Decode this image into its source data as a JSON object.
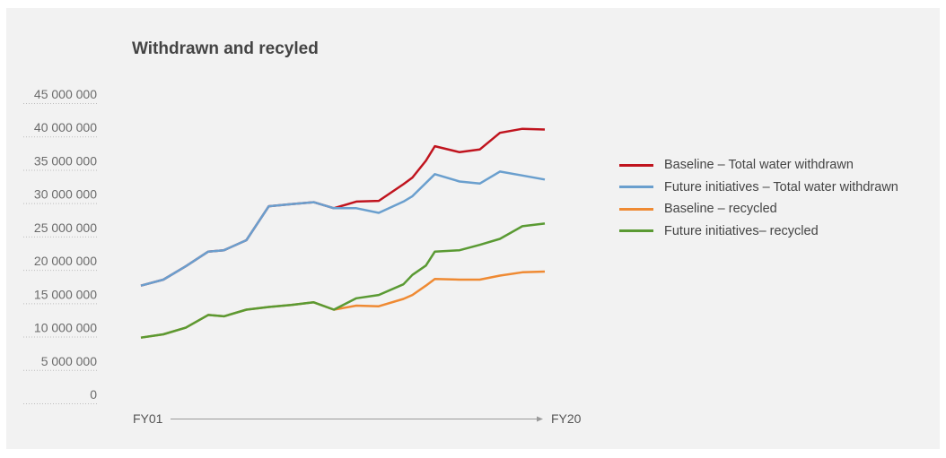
{
  "chart_data": {
    "type": "line",
    "title": "Withdrawn and recyled",
    "x_start_label": "FY01",
    "x_end_label": "FY20",
    "x": [
      1,
      2,
      3,
      4,
      5,
      6,
      7,
      8,
      9,
      10,
      11,
      12,
      13,
      14,
      15,
      16,
      17,
      18,
      19,
      20
    ],
    "yticks": [
      "45 000 000",
      "40 000 000",
      "35 000 000",
      "30 000 000",
      "25 000 000",
      "20 000 000",
      "15 000 000",
      "10 000 000",
      "5 000 000",
      "0"
    ],
    "ylim": [
      0,
      45000000
    ],
    "legend_position": "right",
    "series": [
      {
        "name": "Baseline – Total water withdrawn",
        "color": "#c0141e",
        "points": [
          [
            1,
            16300000
          ],
          [
            2,
            17200000
          ],
          [
            3,
            19200000
          ],
          [
            4,
            21400000
          ],
          [
            4.7,
            21600000
          ],
          [
            5.7,
            23100000
          ],
          [
            6.7,
            28200000
          ],
          [
            7.7,
            28500000
          ],
          [
            8.7,
            28800000
          ],
          [
            9.6,
            27900000
          ],
          [
            10.6,
            28900000
          ],
          [
            11.6,
            29000000
          ],
          [
            12.7,
            31500000
          ],
          [
            13.1,
            32500000
          ],
          [
            13.7,
            35000000
          ],
          [
            14.1,
            37200000
          ],
          [
            15.2,
            36300000
          ],
          [
            16.1,
            36700000
          ],
          [
            17,
            39200000
          ],
          [
            18,
            39800000
          ],
          [
            19,
            39700000
          ]
        ]
      },
      {
        "name": "Future initiatives – Total water withdrawn",
        "color": "#6a9fce",
        "points": [
          [
            1,
            16300000
          ],
          [
            2,
            17200000
          ],
          [
            3,
            19200000
          ],
          [
            4,
            21400000
          ],
          [
            4.7,
            21600000
          ],
          [
            5.7,
            23100000
          ],
          [
            6.7,
            28200000
          ],
          [
            7.7,
            28500000
          ],
          [
            8.7,
            28800000
          ],
          [
            9.6,
            27900000
          ],
          [
            10.6,
            27900000
          ],
          [
            11.6,
            27200000
          ],
          [
            12.7,
            28900000
          ],
          [
            13.1,
            29700000
          ],
          [
            14.1,
            33000000
          ],
          [
            15.2,
            31900000
          ],
          [
            16.1,
            31600000
          ],
          [
            17,
            33400000
          ],
          [
            18,
            32800000
          ],
          [
            19,
            32200000
          ]
        ]
      },
      {
        "name": "Baseline – recycled",
        "color": "#ef8a33",
        "points": [
          [
            1,
            8500000
          ],
          [
            2,
            9000000
          ],
          [
            3,
            10000000
          ],
          [
            4,
            11900000
          ],
          [
            4.7,
            11700000
          ],
          [
            5.7,
            12700000
          ],
          [
            6.7,
            13100000
          ],
          [
            7.7,
            13400000
          ],
          [
            8.7,
            13800000
          ],
          [
            9.6,
            12700000
          ],
          [
            10.6,
            13300000
          ],
          [
            11.6,
            13200000
          ],
          [
            12.7,
            14300000
          ],
          [
            13.1,
            14900000
          ],
          [
            13.7,
            16300000
          ],
          [
            14.1,
            17300000
          ],
          [
            15.2,
            17200000
          ],
          [
            16.1,
            17200000
          ],
          [
            17,
            17800000
          ],
          [
            18,
            18300000
          ],
          [
            19,
            18400000
          ]
        ]
      },
      {
        "name": "Future initiatives– recycled",
        "color": "#5a9a33",
        "points": [
          [
            1,
            8500000
          ],
          [
            2,
            9000000
          ],
          [
            3,
            10000000
          ],
          [
            4,
            11900000
          ],
          [
            4.7,
            11700000
          ],
          [
            5.7,
            12700000
          ],
          [
            6.7,
            13100000
          ],
          [
            7.7,
            13400000
          ],
          [
            8.7,
            13800000
          ],
          [
            9.6,
            12700000
          ],
          [
            10.6,
            14400000
          ],
          [
            11.6,
            14900000
          ],
          [
            12.7,
            16500000
          ],
          [
            13.1,
            17900000
          ],
          [
            13.7,
            19300000
          ],
          [
            14.1,
            21400000
          ],
          [
            15.2,
            21600000
          ],
          [
            16.1,
            22400000
          ],
          [
            17,
            23300000
          ],
          [
            18,
            25200000
          ],
          [
            19,
            25600000
          ]
        ]
      }
    ]
  }
}
